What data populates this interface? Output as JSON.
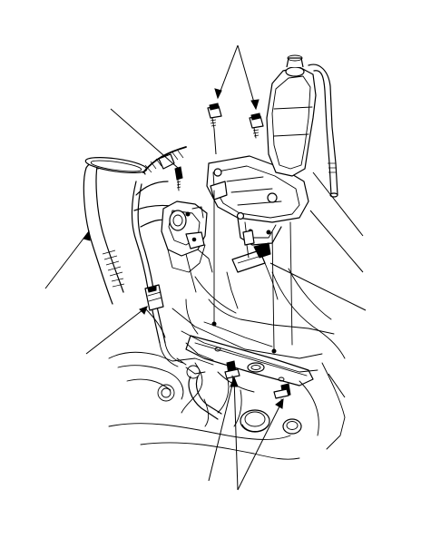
{
  "figure": {
    "kind": "exploded-view-line-drawing",
    "colors": {
      "ink": "#000000",
      "paper": "#ffffff"
    },
    "callouts": [
      {
        "id": "top-bolts"
      },
      {
        "id": "harness-clamp"
      },
      {
        "id": "intake-duct"
      },
      {
        "id": "wire-connector"
      },
      {
        "id": "reservoir"
      },
      {
        "id": "bracket-mount"
      },
      {
        "id": "sensor"
      },
      {
        "id": "harness"
      },
      {
        "id": "lower-bolts"
      }
    ]
  }
}
